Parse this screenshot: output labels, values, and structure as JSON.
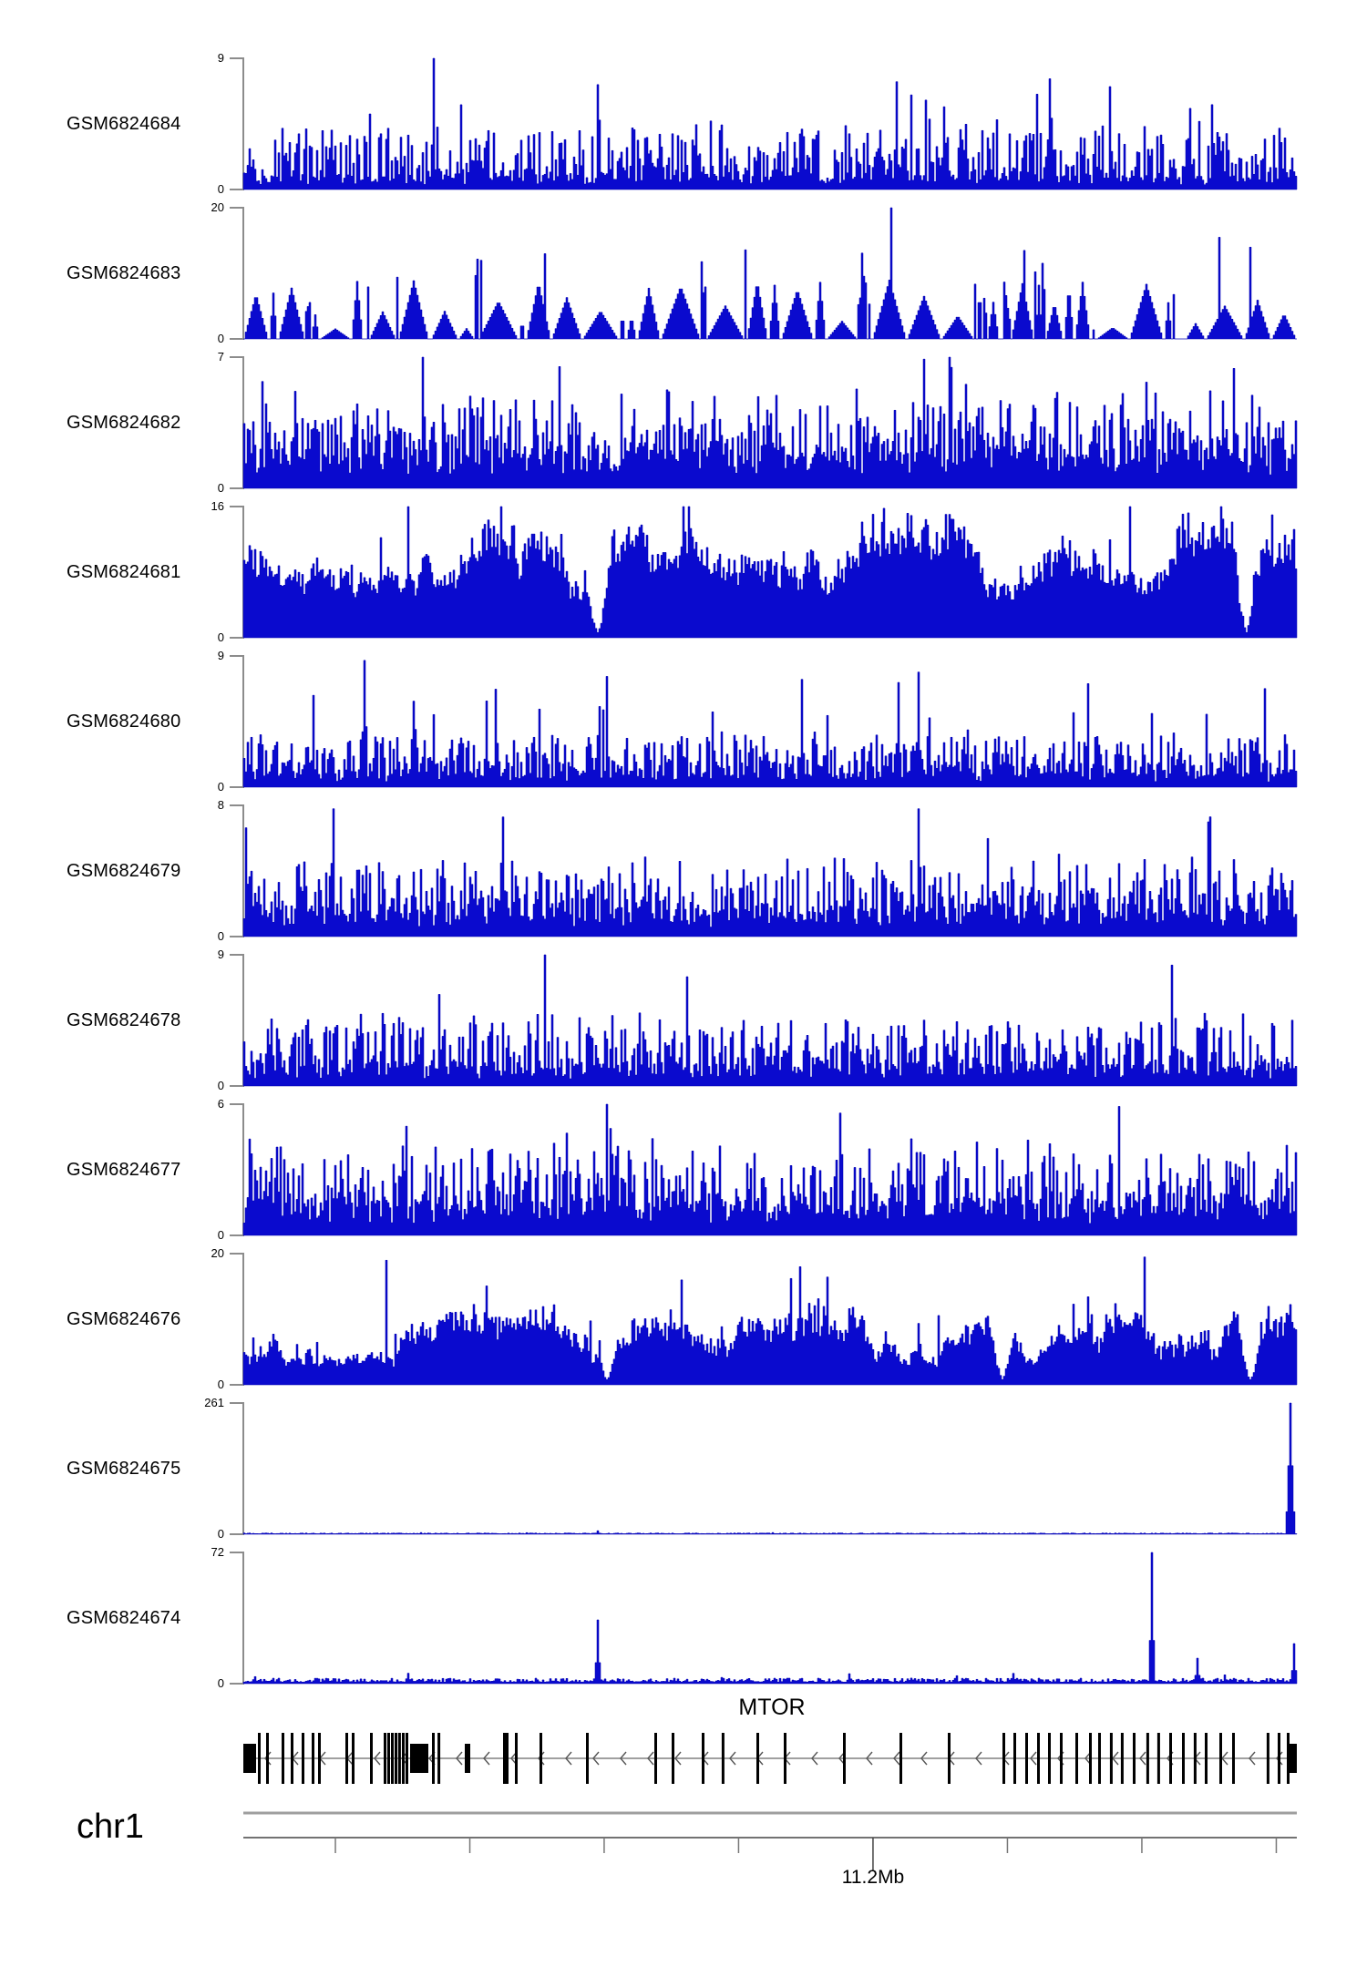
{
  "figure": {
    "chromosome_label": "chr1",
    "gene_label": "MTOR",
    "position_label": "11.2Mb"
  },
  "colors": {
    "signal": "#0a0ace",
    "signal_stroke": "#0000b0",
    "axis": "#8c8c8c",
    "gene": "#000000",
    "gene_line": "#808080",
    "ruler_line": "#444444",
    "ruler_top_bar": "#9e9e9e",
    "minor_tick": "#777777"
  },
  "chart_data": {
    "type": "area",
    "description": "Genome browser read-coverage tracks for 11 GEO samples over the MTOR gene locus on chr1 (~11.2Mb). Each track is a blue coverage histogram scaled from 0 to its own maximum.",
    "legend_position": "left-labels",
    "grid": false,
    "tracks": [
      {
        "sample": "GSM6824684",
        "ymin": 0,
        "ymax": 9,
        "pattern": "dense-spikes",
        "profile": {
          "style": "dense",
          "base": 0.07,
          "amp": 0.4,
          "spike_prob": 0.055,
          "spike_amp": 0.45
        },
        "peaks": [
          {
            "pos": 0.18,
            "value": 9
          },
          {
            "pos": 0.335,
            "value": 7.2
          },
          {
            "pos": 0.62,
            "value": 7.4
          },
          {
            "pos": 0.765,
            "value": 7.6
          }
        ]
      },
      {
        "sample": "GSM6824683",
        "ymin": 0,
        "ymax": 20,
        "pattern": "triangular-mounds-with-spikes",
        "profile": {
          "style": "mounds"
        },
        "peaks": [
          {
            "pos": 0.225,
            "value": 12
          },
          {
            "pos": 0.285,
            "value": 13
          },
          {
            "pos": 0.615,
            "value": 20
          },
          {
            "pos": 0.74,
            "value": 13.5
          },
          {
            "pos": 0.925,
            "value": 15.5
          },
          {
            "pos": 0.955,
            "value": 14
          }
        ]
      },
      {
        "sample": "GSM6824682",
        "ymin": 0,
        "ymax": 7,
        "pattern": "dense-spikes",
        "profile": {
          "style": "dense",
          "base": 0.2,
          "amp": 0.45,
          "spike_prob": 0.05,
          "spike_amp": 0.4
        },
        "peaks": [
          {
            "pos": 0.17,
            "value": 7
          },
          {
            "pos": 0.3,
            "value": 6.5
          },
          {
            "pos": 0.645,
            "value": 6.9
          },
          {
            "pos": 0.94,
            "value": 6.4
          }
        ]
      },
      {
        "sample": "GSM6824681",
        "ymin": 0,
        "ymax": 16,
        "pattern": "near-solid-coverage",
        "profile": {
          "style": "solid",
          "lo": 0.42,
          "hi": 0.95,
          "dips": [
            0.335,
            0.952
          ]
        },
        "peaks": [
          {
            "pos": 0.155,
            "value": 16
          },
          {
            "pos": 0.84,
            "value": 16
          },
          {
            "pos": 0.975,
            "value": 15
          }
        ]
      },
      {
        "sample": "GSM6824680",
        "ymin": 0,
        "ymax": 9,
        "pattern": "dense-spikes",
        "profile": {
          "style": "dense",
          "base": 0.08,
          "amp": 0.33,
          "spike_prob": 0.05,
          "spike_amp": 0.45
        },
        "peaks": [
          {
            "pos": 0.115,
            "value": 8.7
          },
          {
            "pos": 0.345,
            "value": 7.6
          },
          {
            "pos": 0.53,
            "value": 7.4
          },
          {
            "pos": 0.64,
            "value": 7.9
          }
        ]
      },
      {
        "sample": "GSM6824679",
        "ymin": 0,
        "ymax": 8,
        "pattern": "dense-spikes",
        "profile": {
          "style": "dense",
          "base": 0.14,
          "amp": 0.42,
          "spike_prob": 0.05,
          "spike_amp": 0.4
        },
        "peaks": [
          {
            "pos": 0.085,
            "value": 7.8
          },
          {
            "pos": 0.245,
            "value": 7.3
          },
          {
            "pos": 0.64,
            "value": 7.8
          },
          {
            "pos": 0.915,
            "value": 7
          }
        ]
      },
      {
        "sample": "GSM6824678",
        "ymin": 0,
        "ymax": 9,
        "pattern": "dense-spikes",
        "profile": {
          "style": "dense",
          "base": 0.11,
          "amp": 0.4,
          "spike_prob": 0.05,
          "spike_amp": 0.42
        },
        "peaks": [
          {
            "pos": 0.285,
            "value": 9
          },
          {
            "pos": 0.42,
            "value": 7.5
          },
          {
            "pos": 0.88,
            "value": 8.3
          }
        ]
      },
      {
        "sample": "GSM6824677",
        "ymin": 0,
        "ymax": 6,
        "pattern": "dense-spikes",
        "profile": {
          "style": "dense",
          "base": 0.18,
          "amp": 0.48,
          "spike_prob": 0.05,
          "spike_amp": 0.4
        },
        "peaks": [
          {
            "pos": 0.345,
            "value": 6
          },
          {
            "pos": 0.565,
            "value": 5.6
          },
          {
            "pos": 0.83,
            "value": 5.9
          }
        ]
      },
      {
        "sample": "GSM6824676",
        "ymin": 0,
        "ymax": 20,
        "pattern": "near-solid-coverage",
        "profile": {
          "style": "solid",
          "lo": 0.2,
          "hi": 0.62,
          "dips": [
            0.345,
            0.72,
            0.955
          ]
        },
        "peaks": [
          {
            "pos": 0.135,
            "value": 19
          },
          {
            "pos": 0.415,
            "value": 16
          },
          {
            "pos": 0.855,
            "value": 19.5
          }
        ]
      },
      {
        "sample": "GSM6824675",
        "ymin": 0,
        "ymax": 261,
        "pattern": "flat-with-single-peak",
        "profile": {
          "style": "flat",
          "base": 0.004,
          "jitter": 0.006,
          "bump_prob": 0.01,
          "bump_amp": 0.01
        },
        "peaks": [
          {
            "pos": 0.335,
            "value": 7,
            "w": 0.004
          },
          {
            "pos": 0.993,
            "value": 261,
            "w": 0.005
          }
        ]
      },
      {
        "sample": "GSM6824674",
        "ymin": 0,
        "ymax": 72,
        "pattern": "low-noise-with-peaks",
        "profile": {
          "style": "flat",
          "base": 0.012,
          "jitter": 0.03,
          "bump_prob": 0.05,
          "bump_amp": 0.05
        },
        "peaks": [
          {
            "pos": 0.335,
            "value": 35,
            "w": 0.003
          },
          {
            "pos": 0.862,
            "value": 72,
            "w": 0.003
          },
          {
            "pos": 0.905,
            "value": 14,
            "w": 0.003
          },
          {
            "pos": 0.997,
            "value": 22,
            "w": 0.004
          }
        ]
      }
    ],
    "gene_track": {
      "name": "MTOR",
      "strand": "-",
      "exons_cds": [
        0.0138,
        0.0216,
        0.0363,
        0.045,
        0.0554,
        0.0649,
        0.0709,
        0.0969,
        0.1029,
        0.1202,
        0.1332,
        0.1367,
        0.1401,
        0.1436,
        0.147,
        0.1505,
        0.154,
        0.1791,
        0.1843,
        0.2465,
        0.2491,
        0.2578,
        0.2811,
        0.3253,
        0.3901,
        0.4066,
        0.4351,
        0.4541,
        0.487,
        0.513,
        0.5692,
        0.6228,
        0.6687,
        0.7206,
        0.731,
        0.7422,
        0.7535,
        0.7638,
        0.7751,
        0.7898,
        0.8028,
        0.8114,
        0.8226,
        0.833,
        0.8443,
        0.8572,
        0.8676,
        0.8789,
        0.891,
        0.9022,
        0.9126,
        0.9265,
        0.9386,
        0.9714,
        0.9818,
        0.9905
      ],
      "utr_blocks": [
        [
          0.0,
          14
        ],
        [
          0.1583,
          20
        ],
        [
          0.2102,
          6
        ],
        [
          0.9931,
          8
        ]
      ]
    },
    "ruler": {
      "minor_ticks": [
        0.0874,
        0.215,
        0.3425,
        0.4701,
        0.7253,
        0.8529,
        0.9805
      ],
      "major_tick": {
        "pos": 0.5977,
        "label": "11.2Mb"
      },
      "chromosome": "chr1"
    }
  }
}
